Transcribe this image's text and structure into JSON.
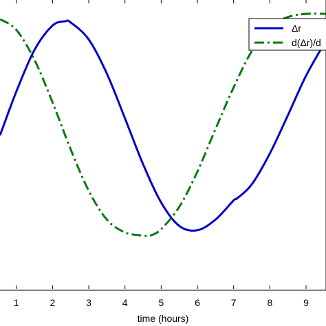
{
  "chart_data": {
    "type": "line",
    "title": "",
    "xlabel": "time (hours)",
    "ylabel": "",
    "xlim": [
      0.55,
      9.55
    ],
    "ylim": [
      -1.53,
      1.18
    ],
    "xticks": [
      1,
      2,
      3,
      4,
      5,
      6,
      7,
      8,
      9
    ],
    "xtick_labels": [
      "1",
      "2",
      "3",
      "4",
      "5",
      "6",
      "7",
      "8",
      "9"
    ],
    "grid": false,
    "legend_position": "top-right",
    "series": [
      {
        "name": "Δr",
        "color": "#0000cc",
        "style": "solid",
        "x": [
          0.55,
          1.0,
          1.5,
          2.0,
          2.35,
          2.5,
          3.0,
          3.5,
          4.0,
          4.5,
          5.0,
          5.5,
          6.0,
          6.5,
          7.0,
          7.1,
          7.5,
          8.0,
          8.5,
          9.0,
          9.55
        ],
        "values": [
          -0.09,
          0.32,
          0.71,
          0.94,
          0.98,
          0.97,
          0.81,
          0.49,
          0.07,
          -0.36,
          -0.72,
          -0.94,
          -0.98,
          -0.88,
          -0.7,
          -0.68,
          -0.55,
          -0.26,
          0.1,
          0.47,
          0.8
        ]
      },
      {
        "name": "d(Δr)/d",
        "color": "#0a7a0a",
        "style": "dash-dot",
        "x": [
          0.55,
          1.0,
          1.5,
          2.0,
          2.5,
          3.0,
          3.5,
          4.0,
          4.5,
          4.7,
          5.0,
          5.5,
          6.0,
          6.5,
          7.0,
          7.5,
          8.0,
          8.5,
          9.0,
          9.55
        ],
        "values": [
          1.0,
          0.9,
          0.62,
          0.22,
          -0.22,
          -0.61,
          -0.88,
          -1.0,
          -1.03,
          -1.03,
          -0.97,
          -0.76,
          -0.43,
          -0.03,
          0.36,
          0.7,
          0.93,
          1.02,
          1.05,
          1.05
        ]
      }
    ]
  }
}
